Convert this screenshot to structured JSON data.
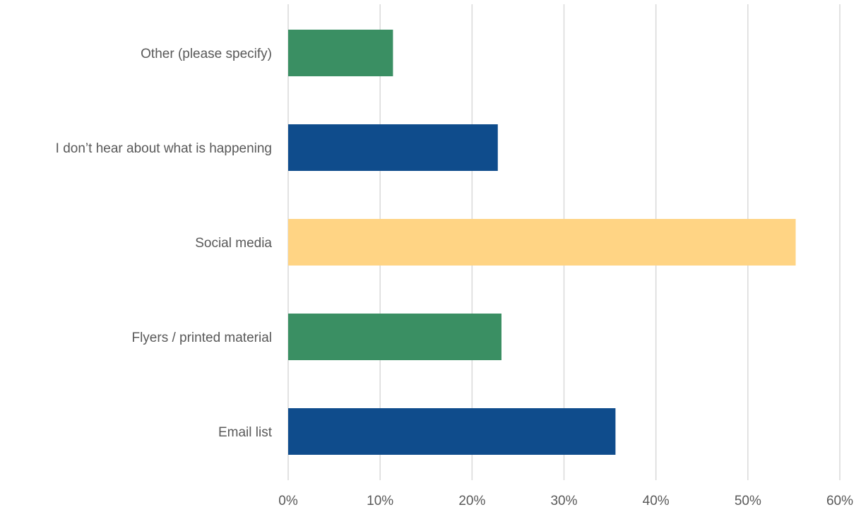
{
  "chart_data": {
    "type": "bar",
    "orientation": "horizontal",
    "title": "",
    "xlabel": "",
    "ylabel": "",
    "categories": [
      "Other (please specify)",
      "I don’t hear about what is happening",
      "Social media",
      "Flyers / printed material",
      "Email list"
    ],
    "values": [
      11.4,
      22.8,
      55.2,
      23.2,
      35.6
    ],
    "unit": "%",
    "bar_colors": [
      "#3a8f63",
      "#0f4c8c",
      "#ffd484",
      "#3a8f63",
      "#0f4c8c"
    ],
    "xlim": [
      0,
      60
    ],
    "xticks": [
      0,
      10,
      20,
      30,
      40,
      50,
      60
    ],
    "xtick_labels": [
      "0%",
      "10%",
      "20%",
      "30%",
      "40%",
      "50%",
      "60%"
    ],
    "grid": true,
    "legend": "none"
  },
  "colors": {
    "gridline": "#d9d9d9",
    "text": "#595959",
    "background": "#ffffff"
  }
}
